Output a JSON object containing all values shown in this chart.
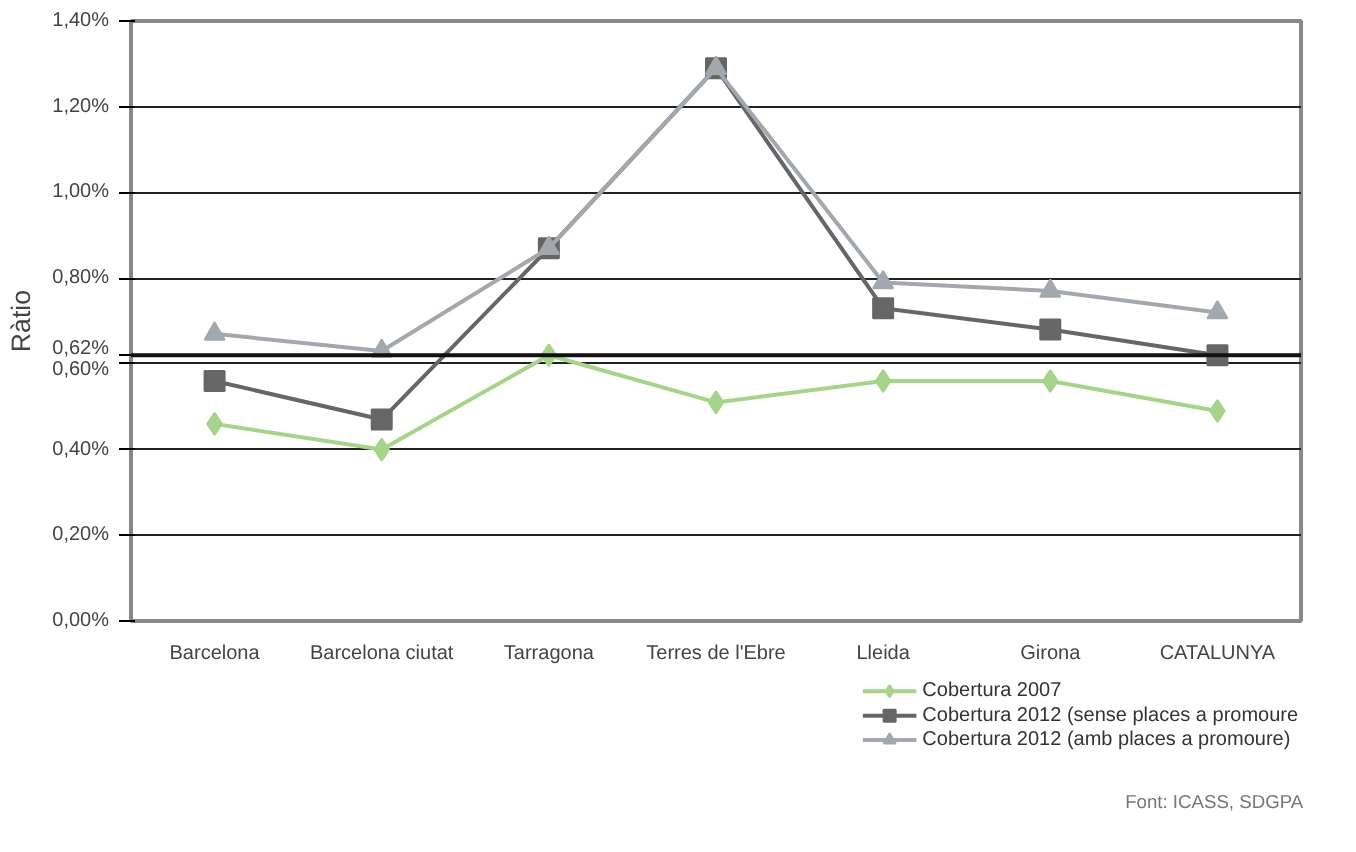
{
  "chart_data": {
    "type": "line",
    "ylabel": "Ràtio",
    "categories": [
      "Barcelona",
      "Barcelona ciutat",
      "Tarragona",
      "Terres de l'Ebre",
      "Lleida",
      "Girona",
      "CATALUNYA"
    ],
    "series": [
      {
        "name": "Cobertura 2007",
        "color": "#a6d48a",
        "marker": "diamond",
        "values": [
          0.46,
          0.4,
          0.62,
          0.51,
          0.56,
          0.56,
          0.49
        ]
      },
      {
        "name": "Cobertura 2012 (sense places a promoure",
        "color": "#666666",
        "marker": "square",
        "values": [
          0.56,
          0.47,
          0.87,
          1.29,
          0.73,
          0.68,
          0.62
        ]
      },
      {
        "name": "Cobertura 2012 (amb places a promoure)",
        "color": "#a3a8ae",
        "marker": "triangle",
        "values": [
          0.67,
          0.63,
          0.87,
          1.29,
          0.79,
          0.77,
          0.72
        ]
      }
    ],
    "ylim": [
      0,
      1.4
    ],
    "yticks": [
      {
        "value": 0,
        "label": "0,00%"
      },
      {
        "value": 0.2,
        "label": "0,20%"
      },
      {
        "value": 0.4,
        "label": "0,40%"
      },
      {
        "value": 0.6,
        "label": "0,60%"
      },
      {
        "value": 0.62,
        "label": "0,62%"
      },
      {
        "value": 0.8,
        "label": "0,80%"
      },
      {
        "value": 1.0,
        "label": "1,00%"
      },
      {
        "value": 1.2,
        "label": "1,20%"
      },
      {
        "value": 1.4,
        "label": "1,40%"
      }
    ],
    "ref_lines": [
      {
        "axis": "y",
        "value": 0.62,
        "color": "#111111"
      }
    ],
    "grid": "y",
    "legend": "bottom right",
    "annotations": [
      "Font: ICASS, SDGPA"
    ]
  }
}
